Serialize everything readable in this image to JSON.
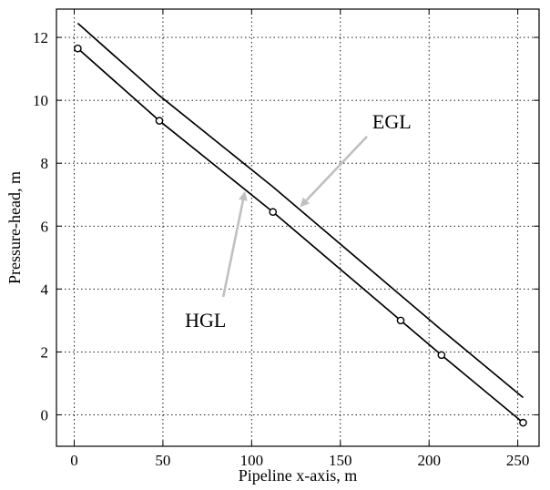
{
  "chart_data": {
    "type": "line",
    "title": "",
    "xlabel": "Pipeline x-axis, m",
    "ylabel": "Pressure-head, m",
    "xlim": [
      -10,
      262
    ],
    "ylim": [
      -1,
      12.9
    ],
    "xticks": [
      0,
      50,
      100,
      150,
      200,
      250
    ],
    "yticks": [
      0,
      2,
      4,
      6,
      8,
      10,
      12
    ],
    "grid": true,
    "grid_style": "dotted",
    "legend": "none",
    "series": [
      {
        "name": "EGL",
        "marker": "none",
        "color": "#000000",
        "x": [
          2,
          48,
          112,
          184,
          207,
          253
        ],
        "y": [
          12.45,
          10.15,
          7.25,
          3.8,
          2.7,
          0.55
        ]
      },
      {
        "name": "HGL",
        "marker": "circle",
        "color": "#000000",
        "x": [
          2,
          48,
          112,
          184,
          207,
          253
        ],
        "y": [
          11.65,
          9.35,
          6.45,
          3.0,
          1.9,
          -0.25
        ]
      }
    ],
    "annotations": [
      {
        "text": "EGL",
        "text_x": 179,
        "text_y": 9.1,
        "arrow_from": [
          165,
          8.85
        ],
        "arrow_to": [
          128,
          6.65
        ],
        "arrow_color": "#c0c0c0"
      },
      {
        "text": "HGL",
        "text_x": 74,
        "text_y": 2.8,
        "arrow_from": [
          84,
          3.75
        ],
        "arrow_to": [
          96,
          7.05
        ],
        "arrow_color": "#c0c0c0"
      }
    ]
  }
}
